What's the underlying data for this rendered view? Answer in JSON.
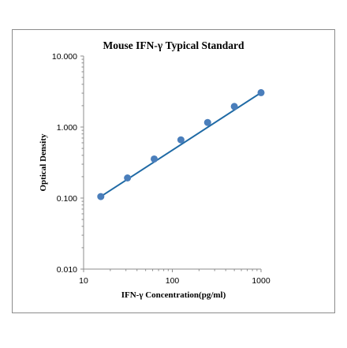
{
  "chart_data": {
    "type": "scatter",
    "title": "Mouse IFN-γ Typical Standard",
    "xlabel": "IFN-γ Concentration(pg/ml)",
    "ylabel": "Optical Density",
    "x_scale": "log",
    "y_scale": "log",
    "xlim": [
      10,
      1000
    ],
    "ylim": [
      0.01,
      10
    ],
    "x_ticks": [
      10,
      100,
      1000
    ],
    "x_tick_labels": [
      "10",
      "100",
      "1000"
    ],
    "y_ticks": [
      0.01,
      0.1,
      1,
      10
    ],
    "y_tick_labels": [
      "0.010",
      "0.100",
      "1.000",
      "10.000"
    ],
    "grid": false,
    "legend": "none",
    "series": [
      {
        "color": "#4a7ebb",
        "x": [
          15.625,
          31.25,
          62.5,
          125,
          250,
          500,
          1000
        ],
        "y": [
          0.105,
          0.192,
          0.355,
          0.66,
          1.16,
          1.95,
          3.05
        ]
      }
    ],
    "trendline": {
      "color": "#1f6aa5",
      "x": [
        15.625,
        1000
      ],
      "y": [
        0.105,
        3.05
      ]
    }
  }
}
